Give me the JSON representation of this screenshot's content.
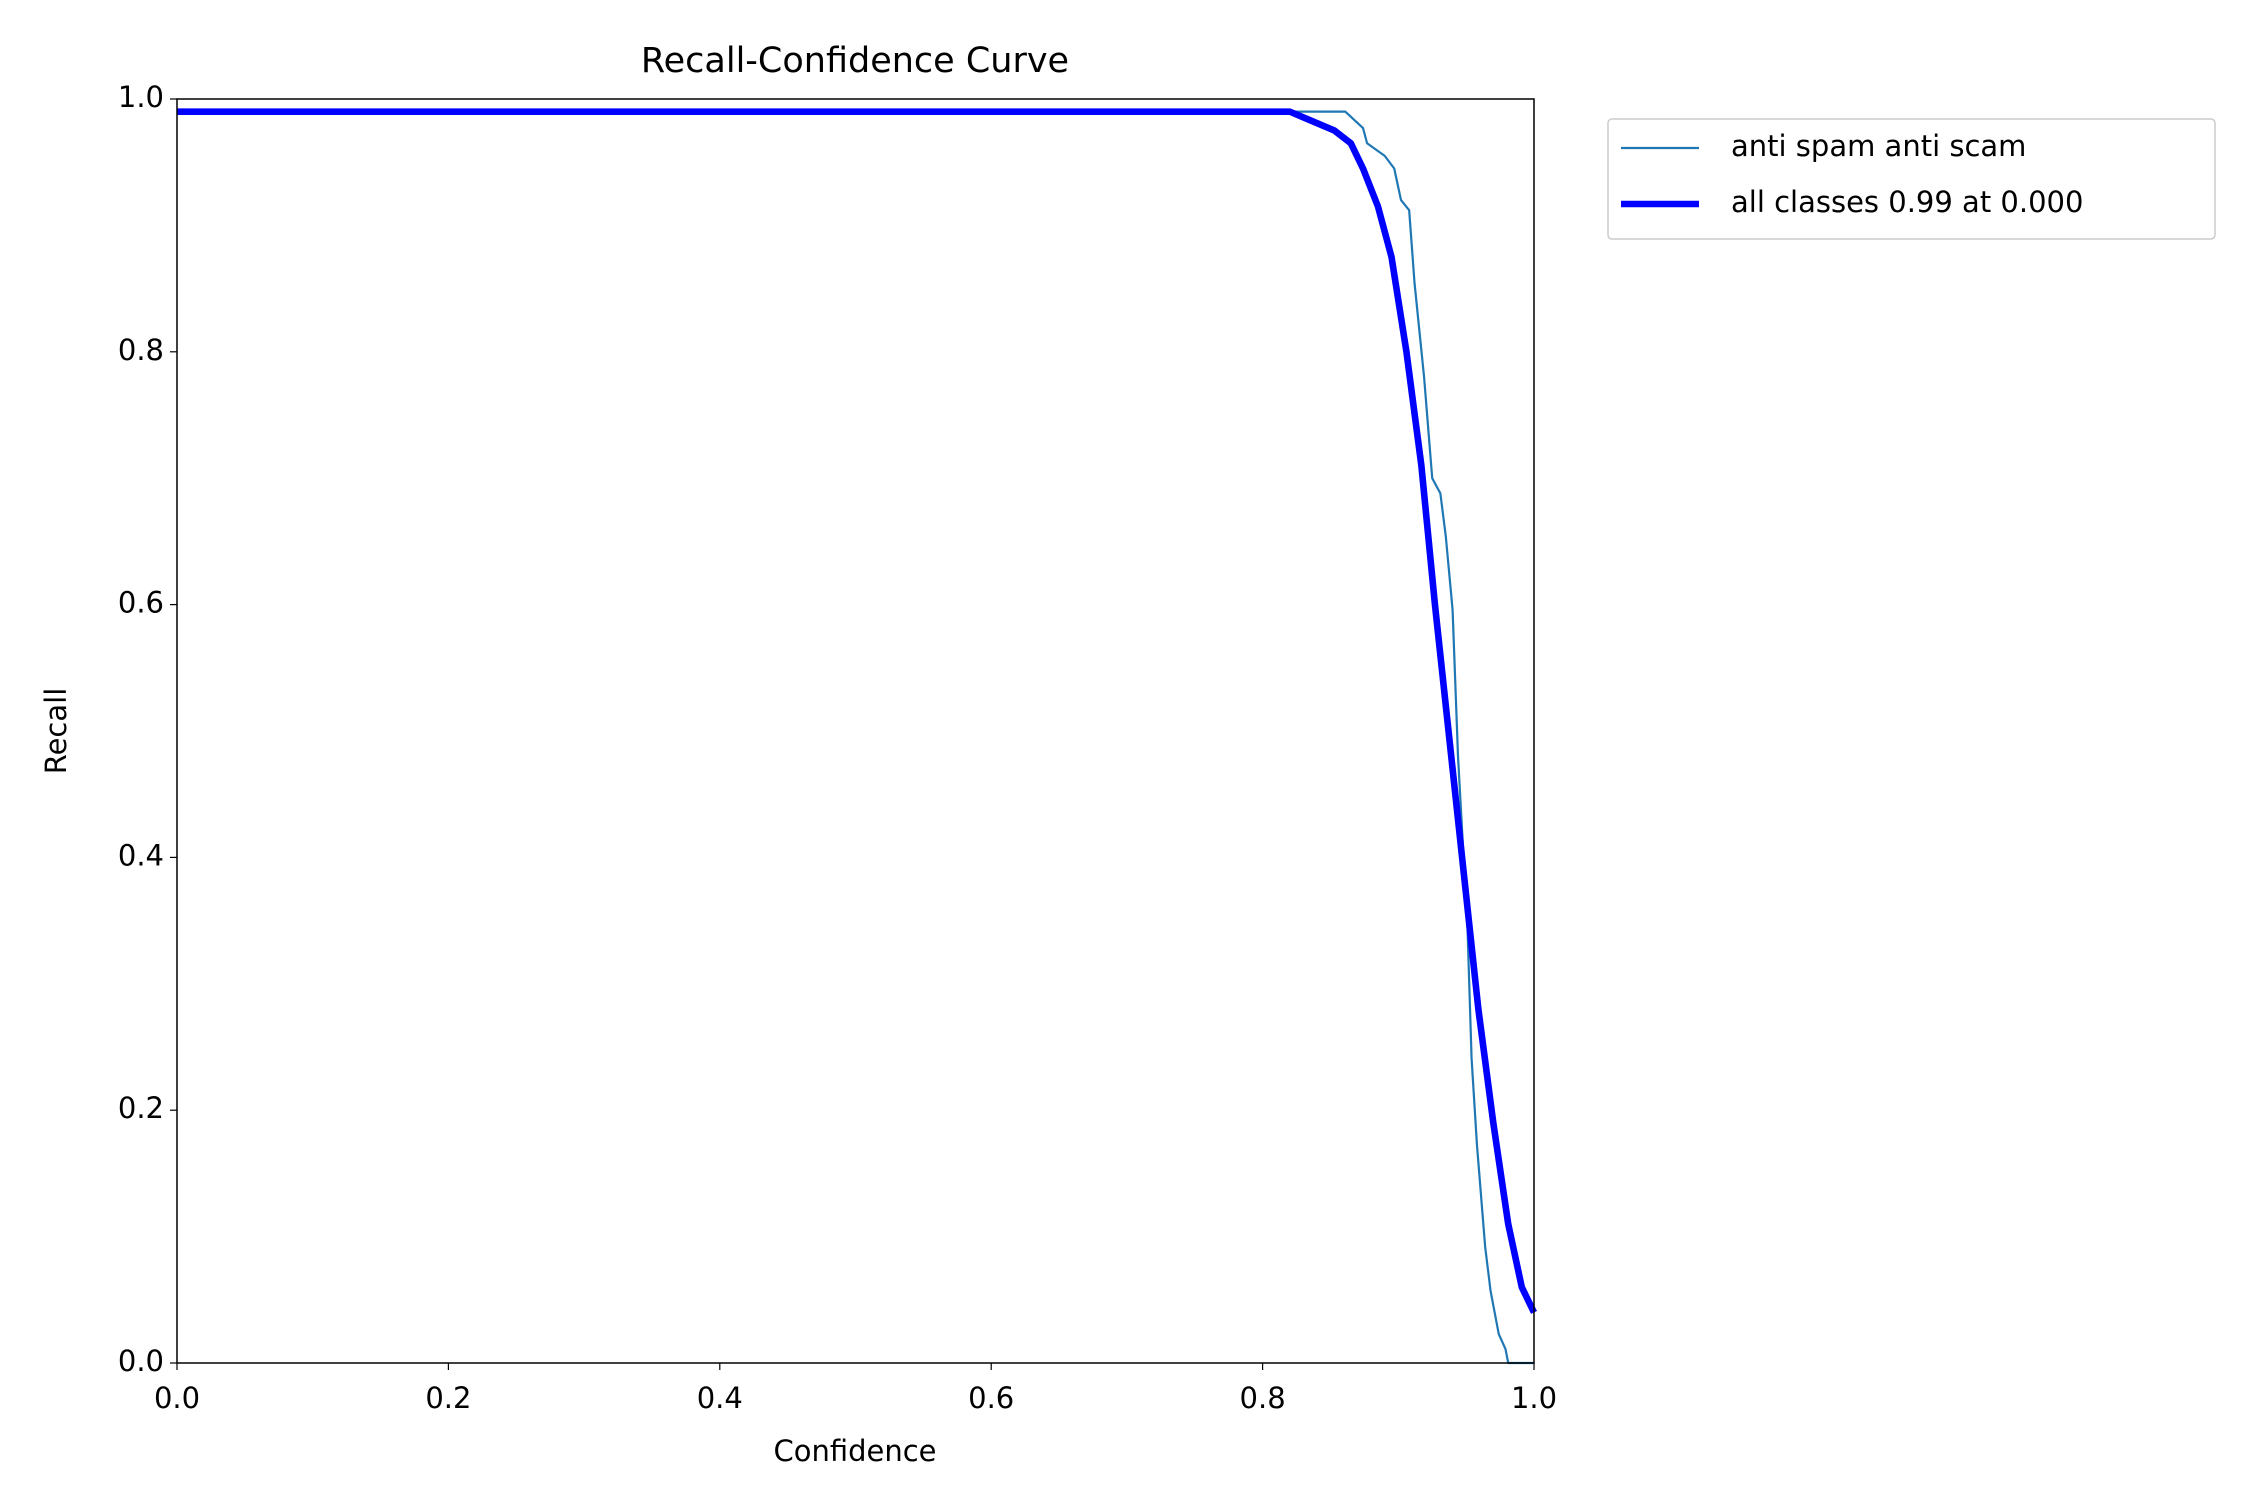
{
  "chart_data": {
    "type": "line",
    "title": "Recall-Confidence Curve",
    "x_label": "Confidence",
    "y_label": "Recall",
    "xlim": [
      0,
      1
    ],
    "ylim": [
      0,
      1
    ],
    "xticks": [
      {
        "value": 0,
        "label": "0.0"
      },
      0.2,
      0.4,
      0.6,
      0.8,
      {
        "value": 1,
        "label": "1.0"
      }
    ],
    "yticks": [
      {
        "value": 0,
        "label": "0.0"
      },
      0.2,
      0.4,
      0.6,
      0.8,
      {
        "value": 1,
        "label": "1.0"
      }
    ],
    "grid": false,
    "legend": "outside upper right",
    "series": [
      {
        "name": "anti spam anti scam",
        "color": "#1f77b4",
        "width": 1,
        "x": [
          0,
          0.861,
          0.874,
          0.877,
          0.89,
          0.897,
          0.902,
          0.908,
          0.912,
          0.919,
          0.925,
          0.931,
          0.935,
          0.94,
          0.944,
          0.951,
          0.954,
          0.958,
          0.964,
          0.968,
          0.974,
          0.979,
          0.981,
          1.0
        ],
        "values": [
          0.99,
          0.99,
          0.977,
          0.965,
          0.955,
          0.945,
          0.92,
          0.912,
          0.854,
          0.78,
          0.7,
          0.688,
          0.654,
          0.596,
          0.48,
          0.344,
          0.241,
          0.172,
          0.092,
          0.057,
          0.023,
          0.011,
          0,
          0
        ]
      },
      {
        "name": "all classes 0.99 at 0.000",
        "color": "#0000ff",
        "width": 3,
        "x": [
          0,
          0.82,
          0.831,
          0.853,
          0.865,
          0.874,
          0.885,
          0.895,
          0.906,
          0.917,
          0.927,
          0.938,
          0.949,
          0.959,
          0.97,
          0.981,
          0.991,
          1.0
        ],
        "values": [
          0.99,
          0.99,
          0.985,
          0.975,
          0.965,
          0.945,
          0.915,
          0.875,
          0.8,
          0.71,
          0.6,
          0.49,
          0.38,
          0.28,
          0.19,
          0.11,
          0.06,
          0.04
        ]
      }
    ]
  }
}
